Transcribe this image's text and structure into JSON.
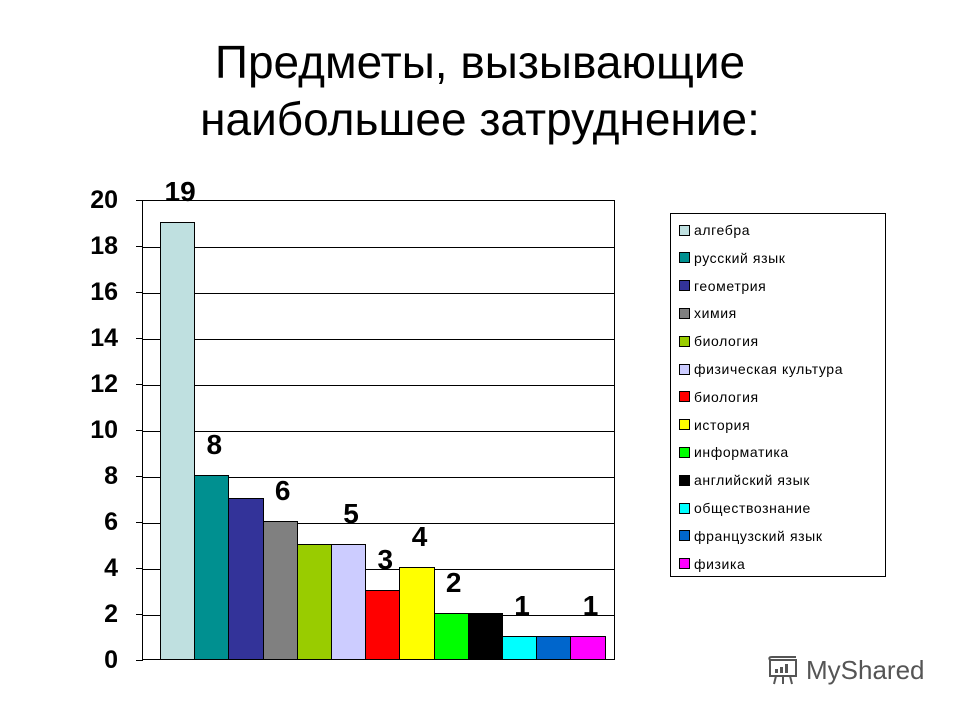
{
  "title": {
    "line1": "Предметы, вызывающие",
    "line2": "наибольшее затруднение:"
  },
  "watermark": {
    "text": "MyShared",
    "icon": "presentation-board-icon"
  },
  "chart_data": {
    "type": "bar",
    "title": "Предметы, вызывающие наибольшее затруднение:",
    "xlabel": "",
    "ylabel": "",
    "ylim": [
      0,
      20
    ],
    "yticks": [
      "0",
      "2",
      "4",
      "6",
      "8",
      "10",
      "12",
      "14",
      "16",
      "18",
      "20"
    ],
    "grid": true,
    "legend_position": "right",
    "categories": [
      "алгебра",
      "русский язык",
      "геометрия",
      "химия",
      "биология",
      "физическая культура",
      "биология",
      "история",
      "информатика",
      "английский язык",
      "обществознание",
      "французский язык",
      "физика"
    ],
    "values": [
      19,
      8,
      7,
      6,
      5,
      5,
      3,
      4,
      2,
      2,
      1,
      1,
      1
    ],
    "colors": [
      "#bfe0e0",
      "#009090",
      "#333399",
      "#808080",
      "#99cc00",
      "#ccccff",
      "#ff0000",
      "#ffff00",
      "#00ff00",
      "#000000",
      "#00ffff",
      "#0066cc",
      "#ff00ff"
    ],
    "data_labels": [
      {
        "index": 0,
        "text": "19"
      },
      {
        "index": 1,
        "text": "8"
      },
      {
        "index": 3,
        "text": "6"
      },
      {
        "index": 5,
        "text": "5"
      },
      {
        "index": 6,
        "text": "3"
      },
      {
        "index": 7,
        "text": "4"
      },
      {
        "index": 8,
        "text": "2"
      },
      {
        "index": 10,
        "text": "1"
      },
      {
        "index": 12,
        "text": "1"
      }
    ]
  }
}
